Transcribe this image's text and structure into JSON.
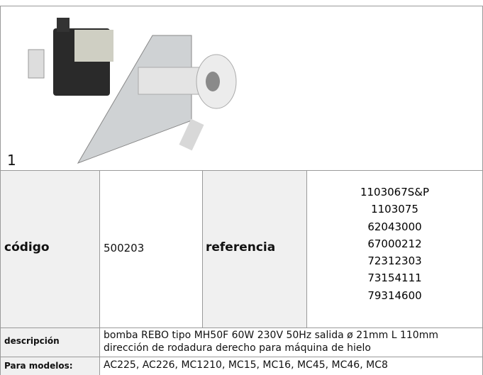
{
  "image": {
    "caption": "1"
  },
  "table": {
    "rows": [
      {
        "label": "código",
        "value": "500203",
        "label2": "referencia",
        "values2": [
          "1103067S&P",
          "1103075",
          "62043000",
          "67000212",
          "72312303",
          "73154111",
          "79314600"
        ]
      },
      {
        "label": "descripción",
        "value": [
          "bomba  REBO tipo MH50F 60W 230V 50Hz salida ø 21mm L 110mm",
          "dirección de rodadura  derecho para máquina de hielo"
        ]
      },
      {
        "label": "Para modelos:",
        "value": "AC225, AC226, MC1210, MC15, MC16, MC45, MC46, MC8"
      }
    ]
  }
}
